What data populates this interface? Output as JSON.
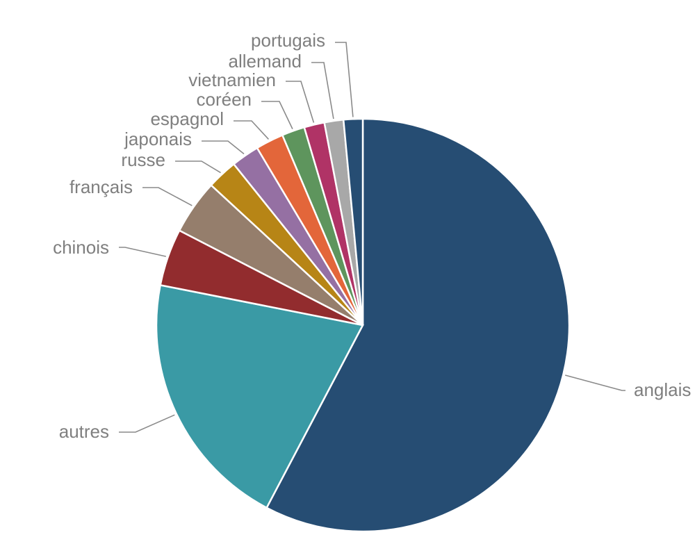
{
  "chart_data": {
    "type": "pie",
    "title": "",
    "slices": [
      {
        "label": "anglais",
        "value": 58.0,
        "color": "#264D73"
      },
      {
        "label": "autres",
        "value": 20.5,
        "color": "#3A9AA5"
      },
      {
        "label": "chinois",
        "value": 4.5,
        "color": "#922C2E"
      },
      {
        "label": "français",
        "value": 4.3,
        "color": "#957E6C"
      },
      {
        "label": "russe",
        "value": 2.4,
        "color": "#B78516"
      },
      {
        "label": "japonais",
        "value": 2.2,
        "color": "#9570A3"
      },
      {
        "label": "espagnol",
        "value": 2.2,
        "color": "#E3663A"
      },
      {
        "label": "coréen",
        "value": 1.8,
        "color": "#5E955D"
      },
      {
        "label": "vietnamien",
        "value": 1.6,
        "color": "#B03366"
      },
      {
        "label": "allemand",
        "value": 1.5,
        "color": "#A8A8A8"
      },
      {
        "label": "portugais",
        "value": 1.5,
        "color": "#264D73"
      }
    ],
    "start_angle": "12 o'clock",
    "direction": "clockwise",
    "legend": "none",
    "label_style": "outside with leader lines"
  }
}
